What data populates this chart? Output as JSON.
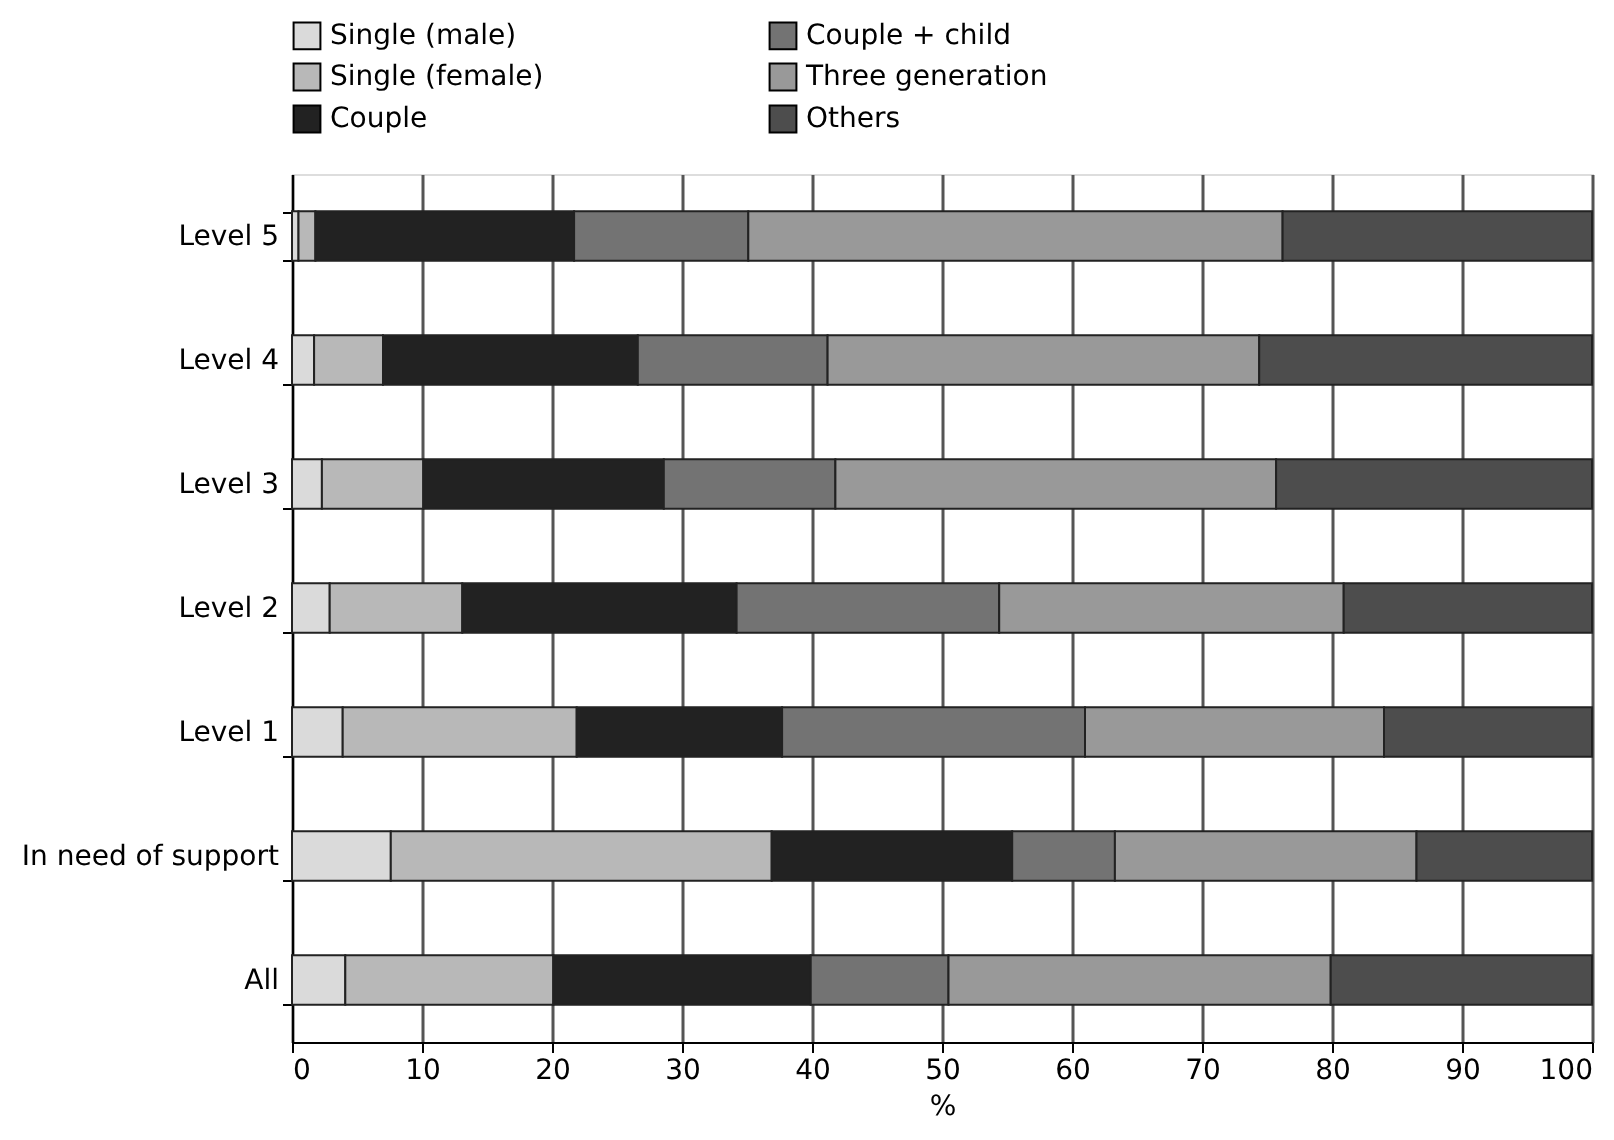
{
  "chart_data": {
    "type": "bar",
    "orientation": "horizontal",
    "stacked": true,
    "xlabel": "%",
    "categories": [
      "Level 5",
      "Level 4",
      "Level 3",
      "Level 2",
      "Level 1",
      "In need of support",
      "All"
    ],
    "series": [
      {
        "name": "Single (male)",
        "color": "#dadada",
        "values": [
          0.5,
          1.7,
          2.3,
          2.9,
          3.9,
          7.6,
          4.1
        ]
      },
      {
        "name": "Single (female)",
        "color": "#b8b8b8",
        "values": [
          1.3,
          5.3,
          7.8,
          10.2,
          18.0,
          29.3,
          16.0
        ]
      },
      {
        "name": "Couple",
        "color": "#222222",
        "values": [
          19.9,
          19.6,
          18.5,
          21.1,
          15.8,
          18.5,
          19.8
        ]
      },
      {
        "name": "Couple + child",
        "color": "#737373",
        "values": [
          13.4,
          14.6,
          13.2,
          20.2,
          23.3,
          7.9,
          10.6
        ]
      },
      {
        "name": "Three generation",
        "color": "#999999",
        "values": [
          41.1,
          33.2,
          33.9,
          26.5,
          23.0,
          23.2,
          29.4
        ]
      },
      {
        "name": "Others",
        "color": "#4d4d4d",
        "values": [
          23.8,
          25.6,
          24.3,
          19.1,
          16.0,
          13.5,
          20.1
        ]
      }
    ],
    "xlim": [
      0,
      100
    ],
    "xticks": [
      0,
      10,
      20,
      30,
      40,
      50,
      60,
      70,
      80,
      90,
      100
    ],
    "grid": "x",
    "legend": "top"
  }
}
